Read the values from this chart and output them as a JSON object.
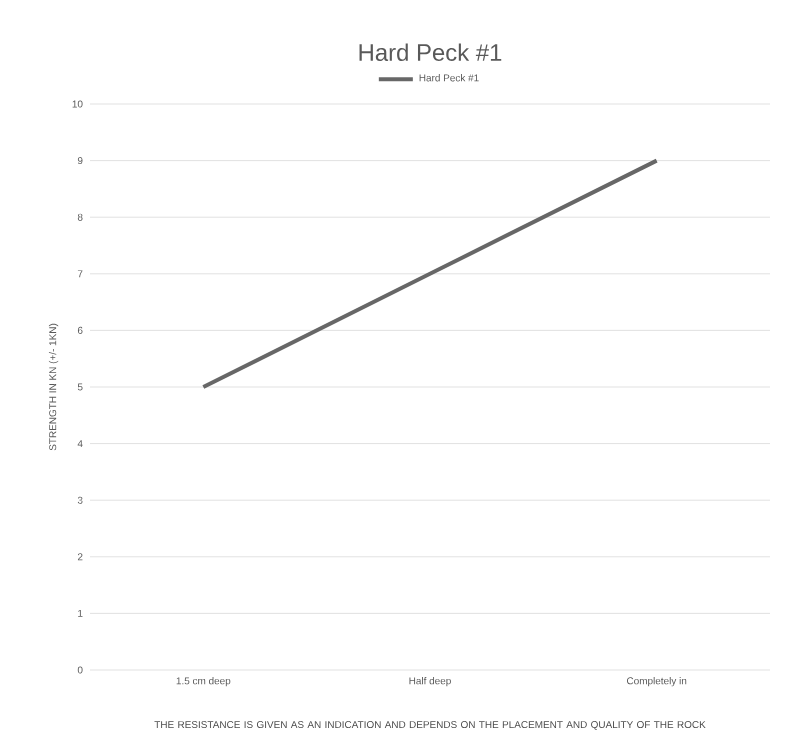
{
  "chart_data": {
    "type": "line",
    "title": "Hard Peck #1",
    "ylabel": "STRENGTH IN KN (+/- 1KN)",
    "categories": [
      "1.5 cm deep",
      "Half deep",
      "Completely in"
    ],
    "series": [
      {
        "name": "Hard Peck #1",
        "color": "#676767",
        "values": [
          5,
          7,
          9
        ]
      }
    ],
    "ylim": [
      0,
      10
    ],
    "yticks": [
      0,
      1,
      2,
      3,
      4,
      5,
      6,
      7,
      8,
      9,
      10
    ],
    "grid": "y",
    "legend": "top",
    "marker": "none",
    "annotations": [
      "THE RESISTANCE IS GIVEN AS AN INDICATION AND DEPENDS ON THE PLACEMENT AND QUALITY OF THE ROCK"
    ]
  }
}
